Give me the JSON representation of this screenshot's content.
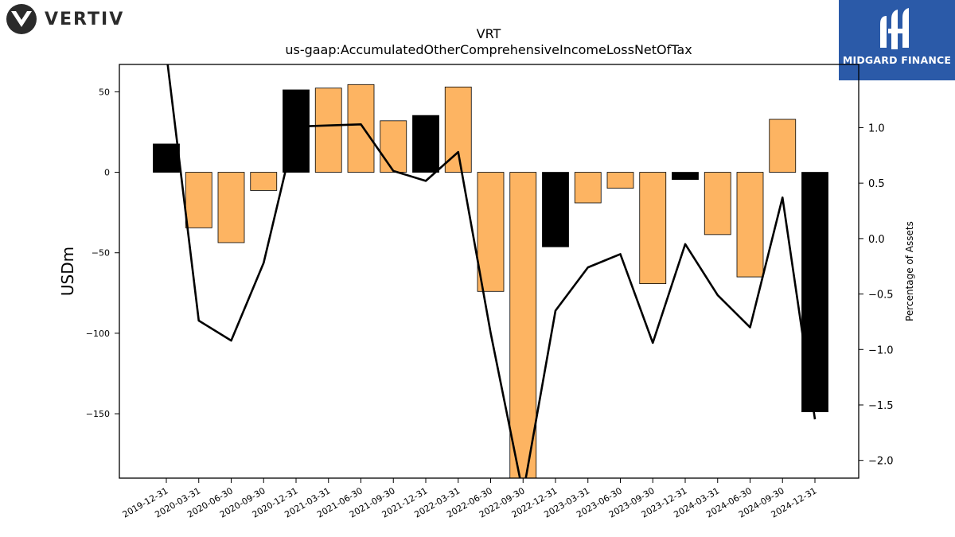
{
  "branding": {
    "left_logo_text": "VERTIV",
    "right_logo_text": "MIDGARD FINANCE"
  },
  "chart_data": {
    "type": "bar",
    "title": "VRT",
    "subtitle": "us-gaap:AccumulatedOtherComprehensiveIncomeLossNetOfTax",
    "ylabel": "USDm",
    "y2label": "Percentage of Assets",
    "ylim": [
      -190,
      67
    ],
    "y2lim": [
      -2.16,
      1.57
    ],
    "yticks": [
      50,
      0,
      -50,
      -100,
      -150
    ],
    "y2ticks": [
      1.0,
      0.5,
      0.0,
      -0.5,
      -1.0,
      -1.5,
      -2.0
    ],
    "categories": [
      "2019-12-31",
      "2020-03-31",
      "2020-06-30",
      "2020-09-30",
      "2020-12-31",
      "2021-03-31",
      "2021-06-30",
      "2021-09-30",
      "2021-12-31",
      "2022-03-31",
      "2022-06-30",
      "2022-09-30",
      "2022-12-31",
      "2023-03-31",
      "2023-06-30",
      "2023-09-30",
      "2023-12-31",
      "2024-03-31",
      "2024-06-30",
      "2024-09-30",
      "2024-12-31"
    ],
    "series": [
      {
        "values": [
          17.6,
          -34.5,
          -43.7,
          -11.3,
          51.2,
          52.3,
          54.5,
          32.0,
          35.3,
          53.0,
          -74.0,
          -190,
          -46.3,
          -19.0,
          -9.9,
          -69.2,
          -4.5,
          -38.7,
          -65.0,
          32.9,
          -148.8
        ],
        "colors": [
          "#000000",
          "#fdb462",
          "#fdb462",
          "#fdb462",
          "#000000",
          "#fdb462",
          "#fdb462",
          "#fdb462",
          "#000000",
          "#fdb462",
          "#fdb462",
          "#fdb462",
          "#000000",
          "#fdb462",
          "#fdb462",
          "#fdb462",
          "#000000",
          "#fdb462",
          "#fdb462",
          "#fdb462",
          "#000000"
        ]
      },
      {
        "values": [
          1.67,
          -0.74,
          -0.92,
          -0.22,
          1.01,
          1.02,
          1.03,
          0.61,
          0.52,
          0.78,
          -0.85,
          -2.3,
          -0.65,
          -0.26,
          -0.14,
          -0.94,
          -0.05,
          -0.51,
          -0.8,
          0.37,
          -1.63
        ],
        "axis": "right",
        "color": "#000000"
      }
    ],
    "grid": false,
    "legend": "none"
  }
}
